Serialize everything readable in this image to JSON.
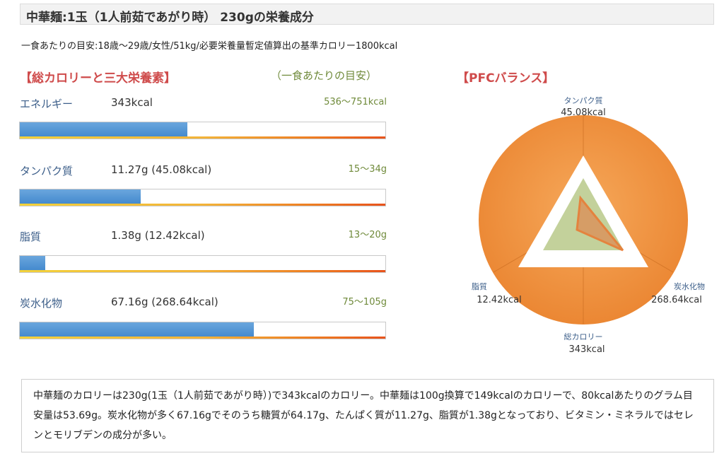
{
  "header": {
    "title": "中華麺:1玉（1人前茹であがり時） 230gの栄養成分"
  },
  "subline": "一食あたりの目安:18歳〜29歳/女性/51kg/必要栄養量暫定値算出の基準カロリー1800kcal",
  "left": {
    "title": "【総カロリーと三大栄養素】",
    "note": "（一食あたりの目安）"
  },
  "right": {
    "title": "【PFCバランス】"
  },
  "colors": {
    "accent_red": "#cf4b4b",
    "bar_blue": "#3f86cc",
    "label_blue": "#3d5f8a",
    "range_green": "#6f8a3a",
    "pfc_orange": "#ef8f3a"
  },
  "chart_data": [
    {
      "type": "bar",
      "rows": [
        {
          "label": "エネルギー",
          "value_text": "343kcal",
          "range_text": "536〜751kcal",
          "fill": 0.459
        },
        {
          "label": "タンパク質",
          "value_text": "11.27g (45.08kcal)",
          "range_text": "15〜34g",
          "fill": 0.331
        },
        {
          "label": "脂質",
          "value_text": "1.38g (12.42kcal)",
          "range_text": "13〜20g",
          "fill": 0.069
        },
        {
          "label": "炭水化物",
          "value_text": "67.16g (268.64kcal)",
          "range_text": "75〜105g",
          "fill": 0.64
        }
      ]
    },
    {
      "type": "radar",
      "axes": [
        {
          "label": "タンパク質",
          "value": "45.08kcal"
        },
        {
          "label": "炭水化物",
          "value": "268.64kcal"
        },
        {
          "label": "総カロリー",
          "value": "343kcal"
        },
        {
          "label": "脂質",
          "value": "12.42kcal"
        }
      ]
    }
  ],
  "description": "中華麺のカロリーは230g(1玉（1人前茹であがり時）)で343kcalのカロリー。中華麺は100g換算で149kcalのカロリーで、80kcalあたりのグラム目安量は53.69g。炭水化物が多く67.16gでそのうち糖質が64.17g、たんぱく質が11.27g、脂質が1.38gとなっており、ビタミン・ミネラルではセレンとモリブデンの成分が多い。"
}
